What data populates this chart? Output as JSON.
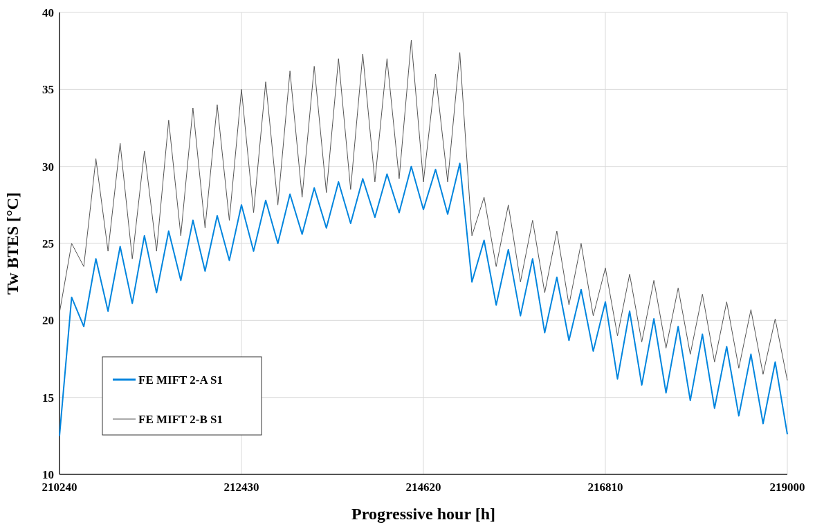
{
  "chart_data": {
    "type": "line",
    "xlabel": "Progressive hour [h]",
    "ylabel": "Tw BTES [°C]",
    "x": [
      210240,
      210386,
      210532,
      210678,
      210824,
      210970,
      211116,
      211262,
      211408,
      211554,
      211700,
      211846,
      211992,
      212138,
      212284,
      212430,
      212576,
      212722,
      212868,
      213014,
      213160,
      213306,
      213452,
      213598,
      213744,
      213890,
      214036,
      214182,
      214328,
      214474,
      214620,
      214766,
      214912,
      215058,
      215204,
      215350,
      215496,
      215642,
      215788,
      215934,
      216080,
      216226,
      216372,
      216518,
      216664,
      216810,
      216956,
      217102,
      217248,
      217394,
      217540,
      217686,
      217832,
      217978,
      218124,
      218270,
      218416,
      218562,
      218708,
      218854,
      219000
    ],
    "series": [
      {
        "name": "FE MIFT 2-A S1",
        "color": "#0085de",
        "values": [
          12.5,
          21.5,
          19.6,
          24.0,
          20.6,
          24.8,
          21.1,
          25.5,
          21.8,
          25.8,
          22.6,
          26.5,
          23.2,
          26.8,
          23.9,
          27.5,
          24.5,
          27.8,
          25.0,
          28.2,
          25.6,
          28.6,
          26.0,
          29.0,
          26.3,
          29.2,
          26.7,
          29.5,
          27.0,
          30.0,
          27.2,
          29.8,
          26.9,
          30.2,
          22.5,
          25.2,
          21.0,
          24.6,
          20.3,
          24.0,
          19.2,
          22.8,
          18.7,
          22.0,
          18.0,
          21.2,
          16.2,
          20.6,
          15.8,
          20.1,
          15.3,
          19.6,
          14.8,
          19.1,
          14.3,
          18.3,
          13.8,
          17.8,
          13.3,
          17.3,
          12.6
        ]
      },
      {
        "name": "FE MIFT 2-B S1",
        "color": "#555555",
        "values": [
          20.5,
          25.0,
          23.5,
          30.5,
          24.5,
          31.5,
          24.0,
          31.0,
          24.5,
          33.0,
          25.5,
          33.8,
          26.0,
          34.0,
          26.5,
          35.0,
          27.0,
          35.5,
          27.5,
          36.2,
          28.0,
          36.5,
          28.3,
          37.0,
          28.5,
          37.3,
          29.0,
          37.0,
          29.2,
          38.2,
          29.0,
          36.0,
          29.0,
          37.4,
          25.5,
          28.0,
          23.5,
          27.5,
          22.5,
          26.5,
          21.8,
          25.8,
          21.0,
          25.0,
          20.3,
          23.4,
          19.0,
          23.0,
          18.6,
          22.6,
          18.2,
          22.1,
          17.8,
          21.7,
          17.3,
          21.2,
          16.9,
          20.7,
          16.5,
          20.1,
          16.1
        ]
      }
    ],
    "xlim": [
      210240,
      219000
    ],
    "xticks": [
      210240,
      212430,
      214620,
      216810,
      219000
    ],
    "ylim": [
      10,
      40
    ],
    "yticks": [
      10,
      15,
      20,
      25,
      30,
      35,
      40
    ],
    "grid": true,
    "legend": "bottom left",
    "line_style": "solid"
  }
}
